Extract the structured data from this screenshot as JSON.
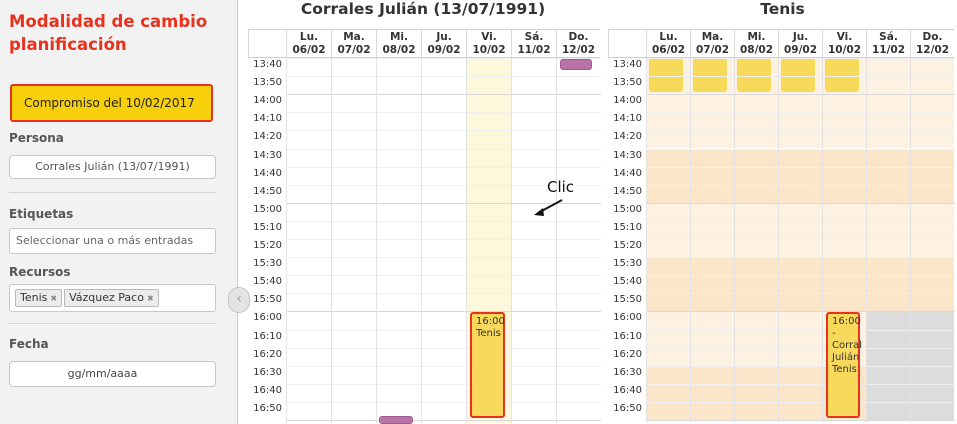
{
  "sidebar": {
    "title": "Modalidad de cambio planificación",
    "commitment_label": "Compromiso del 10/02/2017",
    "person_label": "Persona",
    "person_value": "Corrales Julián (13/07/1991)",
    "tags_label": "Etiquetas",
    "tags_placeholder": "Seleccionar una o más entradas",
    "resources_label": "Recursos",
    "resources": [
      {
        "name": "Tenis",
        "remove": "✖"
      },
      {
        "name": "Vázquez Paco",
        "remove": "✖"
      }
    ],
    "date_label": "Fecha",
    "date_placeholder": "gg/mm/aaaa",
    "collapse_icon": "‹"
  },
  "calendars": [
    {
      "title": "Corrales Julián (13/07/1991)",
      "days": [
        {
          "name": "Lu.",
          "date": "06/02"
        },
        {
          "name": "Ma.",
          "date": "07/02"
        },
        {
          "name": "Mi.",
          "date": "08/02"
        },
        {
          "name": "Ju.",
          "date": "09/02"
        },
        {
          "name": "Vi.",
          "date": "10/02"
        },
        {
          "name": "Sá.",
          "date": "11/02"
        },
        {
          "name": "Do.",
          "date": "12/02"
        }
      ],
      "events": [
        {
          "day": 4,
          "start": "16:00",
          "end": "17:00",
          "lines": [
            "16:00",
            "Tenis"
          ],
          "style": "red"
        }
      ]
    },
    {
      "title": "Tenis",
      "days": [
        {
          "name": "Lu.",
          "date": "06/02"
        },
        {
          "name": "Ma.",
          "date": "07/02"
        },
        {
          "name": "Mi.",
          "date": "08/02"
        },
        {
          "name": "Ju.",
          "date": "09/02"
        },
        {
          "name": "Vi.",
          "date": "10/02"
        },
        {
          "name": "Sá.",
          "date": "11/02"
        },
        {
          "name": "Do.",
          "date": "12/02"
        }
      ],
      "events": [
        {
          "day": 4,
          "start": "16:00",
          "end": "17:00",
          "lines": [
            "16:00 -",
            "Corral",
            "Julián",
            "Tenis"
          ],
          "style": "red"
        }
      ]
    }
  ],
  "time_slots": [
    "13:40",
    "13:50",
    "14:00",
    "14:10",
    "14:20",
    "14:30",
    "14:40",
    "14:50",
    "15:00",
    "15:10",
    "15:20",
    "15:30",
    "15:40",
    "15:50",
    "16:00",
    "16:10",
    "16:20",
    "16:30",
    "16:40",
    "16:50"
  ],
  "annotation": {
    "label": "Clic"
  },
  "colors": {
    "accent_red": "#e8321e",
    "event_yellow": "#f7d95a",
    "today_highlight": "#fdf8dc",
    "available_light": "#fdf1e2",
    "available_dark": "#fbe6c9",
    "unavailable_grey": "#dcdcdc",
    "purple_event": "#b973a8"
  }
}
